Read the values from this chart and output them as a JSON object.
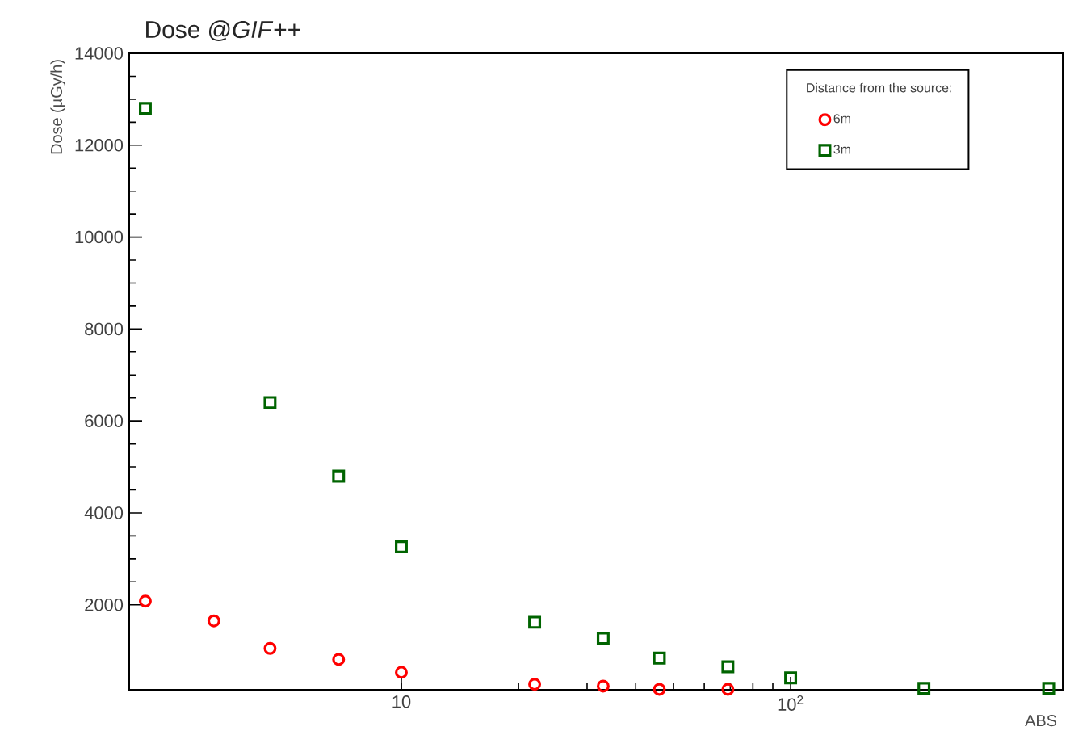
{
  "chart_data": {
    "type": "scatter",
    "title": "Dose @*GIF*++",
    "xlabel": "ABS",
    "ylabel": "Dose (µGy/h)",
    "legend_title": "Distance from the source:",
    "log": "x",
    "xlim": [
      2,
      500
    ],
    "xticks": [
      10,
      {
        "value": 100,
        "label": "10$^{2}$"
      }
    ],
    "ylim": [
      150,
      14000
    ],
    "yticks": [
      2000,
      4000,
      6000,
      8000,
      10000,
      12000,
      14000
    ],
    "legend": "top right",
    "grid": false,
    "series": [
      {
        "name": "6m",
        "color": "#ff0000",
        "marker": "circle",
        "x": [
          2.2,
          3.3,
          4.6,
          6.9,
          10,
          22,
          33,
          46,
          69
        ],
        "values": [
          2080,
          1650,
          1050,
          810,
          530,
          270,
          230,
          160,
          160
        ]
      },
      {
        "name": "3m",
        "color": "#006400",
        "marker": "square",
        "x": [
          2.2,
          4.6,
          6.9,
          10,
          22,
          33,
          46,
          69,
          100,
          220,
          460
        ],
        "values": [
          12800,
          6400,
          4800,
          3260,
          1620,
          1270,
          840,
          650,
          410,
          180,
          180
        ]
      }
    ]
  }
}
